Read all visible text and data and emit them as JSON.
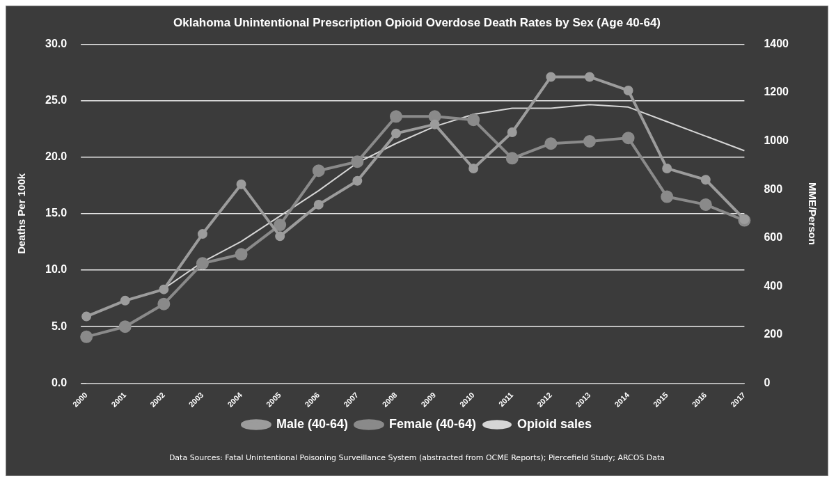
{
  "chart_data": {
    "type": "line",
    "title": "Oklahoma Unintentional Prescription Opioid Overdose Death Rates by Sex (Age 40-64)",
    "ylabel": "Deaths Per 100k",
    "y2label": "MME/Person",
    "categories": [
      "2000",
      "2001",
      "2002",
      "2003",
      "2004",
      "2005",
      "2006",
      "2007",
      "2008",
      "2009",
      "2010",
      "2011",
      "2012",
      "2013",
      "2014",
      "2015",
      "2016",
      "2017"
    ],
    "series": [
      {
        "name": "Male (40-64)",
        "color": "#9c9c9c",
        "values": [
          5.9,
          7.3,
          8.3,
          13.2,
          17.6,
          13.0,
          15.8,
          17.9,
          22.1,
          22.9,
          19.0,
          22.2,
          27.1,
          27.1,
          25.9,
          19.0,
          18.0,
          14.5
        ]
      },
      {
        "name": "Female (40-64)",
        "color": "#8a8a8a",
        "values": [
          4.1,
          5.0,
          7.0,
          10.6,
          11.4,
          14.0,
          18.8,
          19.6,
          23.6,
          23.6,
          23.3,
          19.9,
          21.2,
          21.4,
          21.7,
          16.5,
          15.8,
          14.4
        ]
      },
      {
        "name": "Opioid sales",
        "color": "#d6d6d6",
        "axis": "y2",
        "marker": "none",
        "values": [
          null,
          null,
          390,
          500,
          585,
          690,
          795,
          910,
          990,
          1060,
          1110,
          1135,
          1135,
          1150,
          1140,
          1080,
          1020,
          960
        ]
      }
    ],
    "ylim": [
      0,
      30
    ],
    "yticks": [
      {
        "value": 0,
        "label": "0.0"
      },
      {
        "value": 5,
        "label": "5.0"
      },
      {
        "value": 10,
        "label": "10.0"
      },
      {
        "value": 15,
        "label": "15.0"
      },
      {
        "value": 20,
        "label": "20.0"
      },
      {
        "value": 25,
        "label": "25.0"
      },
      {
        "value": 30,
        "label": "30.0"
      }
    ],
    "y2lim": [
      0,
      1400
    ],
    "y2ticks": [
      0,
      200,
      400,
      600,
      800,
      1000,
      1200,
      1400
    ],
    "grid": "y",
    "legend": "bottom",
    "marker": "circle",
    "line_style": "solid",
    "annotations": [
      "Data Sources: Fatal Unintentional Poisoning Surveillance System (abstracted from OCME Reports); Piercefield Study; ARCOS Data"
    ]
  }
}
